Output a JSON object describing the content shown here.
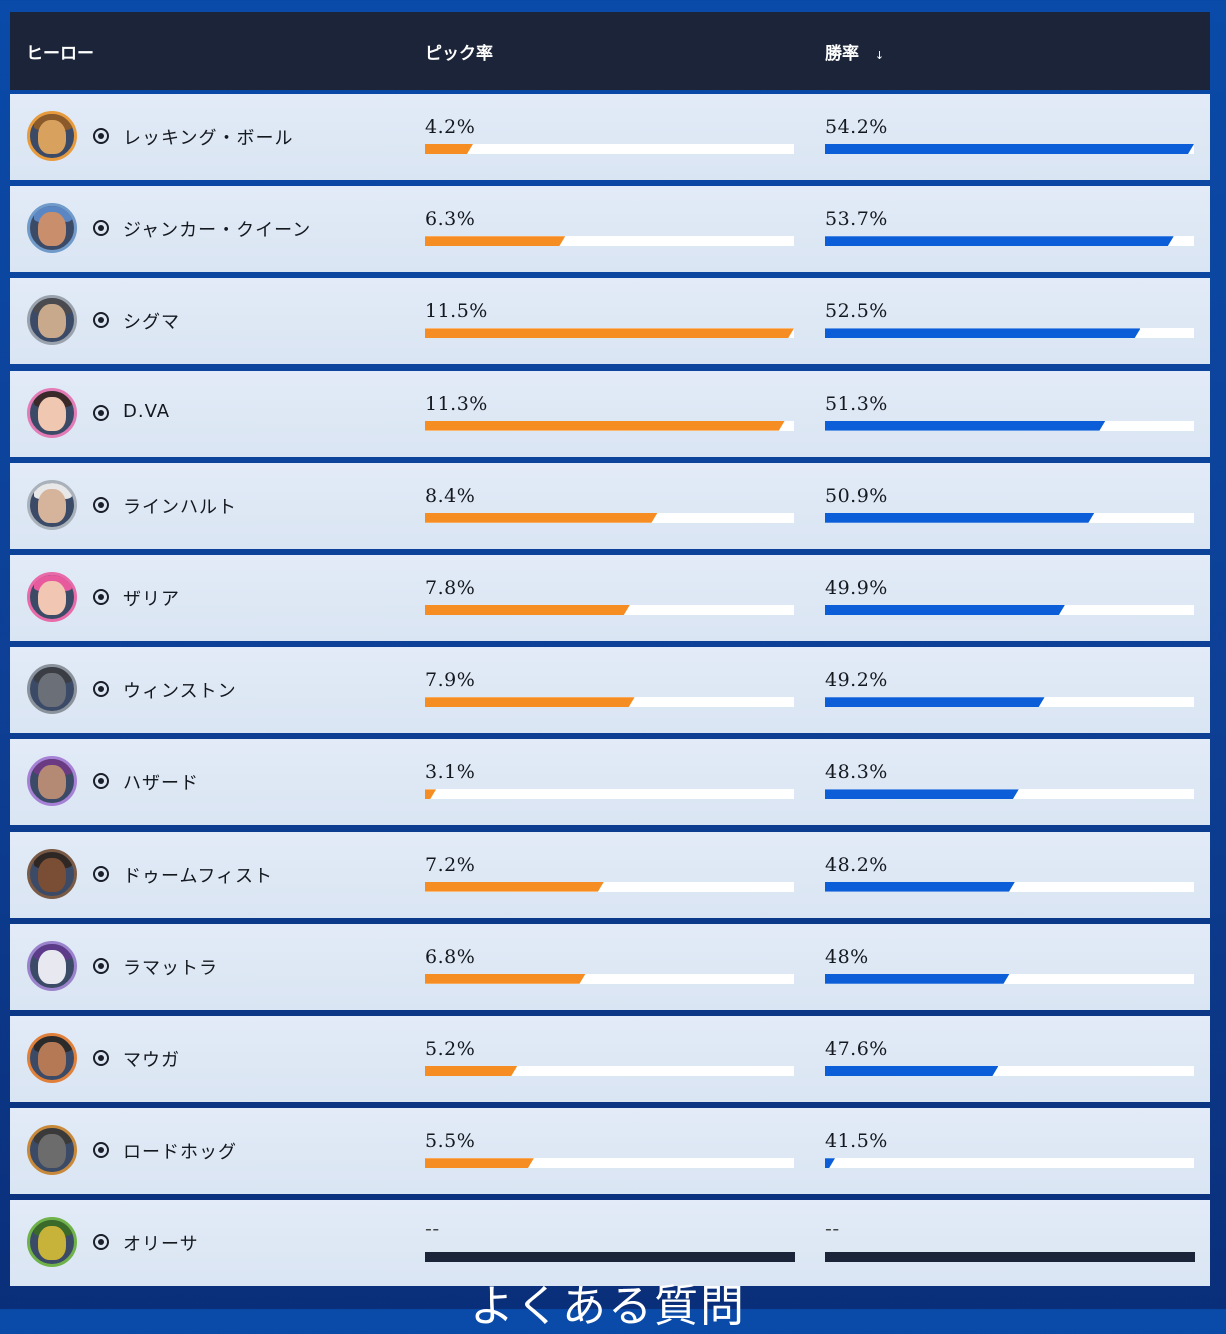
{
  "header": {
    "hero": "ヒーロー",
    "pick": "ピック率",
    "win": "勝率",
    "sort_indicator": "↓"
  },
  "rows": [
    {
      "name": "レッキング・ボール",
      "pick": "4.2%",
      "win": "54.2%",
      "pick_fraction": 0.13,
      "win_fraction": 1.0,
      "ring": "#e89b3c",
      "skin": "#d9a15e",
      "hair": "#8a5a2b"
    },
    {
      "name": "ジャンカー・クイーン",
      "pick": "6.3%",
      "win": "53.7%",
      "pick_fraction": 0.38,
      "win_fraction": 0.945,
      "ring": "#6f9ac9",
      "skin": "#c98f6c",
      "hair": "#5b86c4"
    },
    {
      "name": "シグマ",
      "pick": "11.5%",
      "win": "52.5%",
      "pick_fraction": 1.0,
      "win_fraction": 0.855,
      "ring": "#9aa3ad",
      "skin": "#c9a98c",
      "hair": "#4a4a4f"
    },
    {
      "name": "D.VA",
      "pick": "11.3%",
      "win": "51.3%",
      "pick_fraction": 0.975,
      "win_fraction": 0.76,
      "ring": "#e27bb6",
      "skin": "#f0c7b0",
      "hair": "#3b2a2a"
    },
    {
      "name": "ラインハルト",
      "pick": "8.4%",
      "win": "50.9%",
      "pick_fraction": 0.63,
      "win_fraction": 0.73,
      "ring": "#a9b1ba",
      "skin": "#d6b49c",
      "hair": "#e8e8e8"
    },
    {
      "name": "ザリア",
      "pick": "7.8%",
      "win": "49.9%",
      "pick_fraction": 0.555,
      "win_fraction": 0.65,
      "ring": "#e86aa8",
      "skin": "#f1c6b2",
      "hair": "#e85a9e"
    },
    {
      "name": "ウィンストン",
      "pick": "7.9%",
      "win": "49.2%",
      "pick_fraction": 0.568,
      "win_fraction": 0.595,
      "ring": "#8a929c",
      "skin": "#6b6f78",
      "hair": "#3a3d44"
    },
    {
      "name": "ハザード",
      "pick": "3.1%",
      "win": "48.3%",
      "pick_fraction": 0.03,
      "win_fraction": 0.525,
      "ring": "#a781d6",
      "skin": "#b58a74",
      "hair": "#6a3a82"
    },
    {
      "name": "ドゥームフィスト",
      "pick": "7.2%",
      "win": "48.2%",
      "pick_fraction": 0.485,
      "win_fraction": 0.515,
      "ring": "#7a5a44",
      "skin": "#7a4e35",
      "hair": "#2f2724"
    },
    {
      "name": "ラマットラ",
      "pick": "6.8%",
      "win": "48%",
      "pick_fraction": 0.435,
      "win_fraction": 0.5,
      "ring": "#9a82cc",
      "skin": "#e8e8f0",
      "hair": "#5d3a8a"
    },
    {
      "name": "マウガ",
      "pick": "5.2%",
      "win": "47.6%",
      "pick_fraction": 0.25,
      "win_fraction": 0.47,
      "ring": "#e0803a",
      "skin": "#b57a55",
      "hair": "#2b2b2b"
    },
    {
      "name": "ロードホッグ",
      "pick": "5.5%",
      "win": "41.5%",
      "pick_fraction": 0.295,
      "win_fraction": 0.025,
      "ring": "#c8893a",
      "skin": "#6c6c6c",
      "hair": "#3a3a3a"
    },
    {
      "name": "オリーサ",
      "pick": "--",
      "win": "--",
      "pick_fraction": null,
      "win_fraction": null,
      "ring": "#6fb24a",
      "skin": "#c7b23a",
      "hair": "#3a6a2a"
    }
  ],
  "faq_heading": "よくある質問",
  "colors": {
    "pick_bar": "#f58d23",
    "win_bar": "#0b5ed7",
    "header_bg": "#1b2438"
  }
}
